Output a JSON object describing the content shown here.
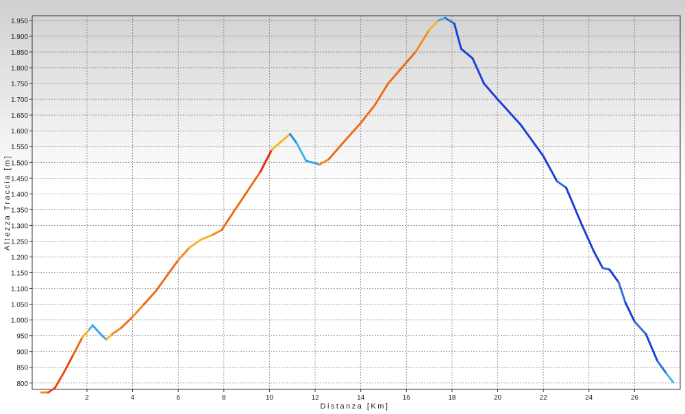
{
  "chart_data": {
    "type": "line",
    "xlabel": "Distanza [Km]",
    "ylabel": "Altezza Traccia [m]",
    "xlim": [
      -0.4,
      28
    ],
    "ylim": [
      780,
      1965
    ],
    "x_ticks": [
      2,
      4,
      6,
      8,
      10,
      12,
      14,
      16,
      18,
      20,
      22,
      24,
      26
    ],
    "y_ticks": [
      800,
      850,
      900,
      950,
      1000,
      1050,
      1100,
      1150,
      1200,
      1250,
      1300,
      1350,
      1400,
      1450,
      1500,
      1550,
      1600,
      1650,
      1700,
      1750,
      1800,
      1850,
      1900,
      1950
    ],
    "y_tick_labels": [
      "800",
      "850",
      "900",
      "950",
      "1.000",
      "1.050",
      "1.100",
      "1.150",
      "1.200",
      "1.250",
      "1.300",
      "1.350",
      "1.400",
      "1.450",
      "1.500",
      "1.550",
      "1.600",
      "1.650",
      "1.700",
      "1.750",
      "1.800",
      "1.850",
      "1.900",
      "1.950"
    ],
    "grid": true,
    "background_gradient": [
      "#cfcfcf",
      "#ffffff"
    ],
    "color_scale": "slope (red = climbing, blue = descending)",
    "series": [
      {
        "points": [
          [
            0.0,
            770,
            "#3ab8ea"
          ],
          [
            0.3,
            770,
            "#f08c1e"
          ],
          [
            0.6,
            785,
            "#e84a14"
          ],
          [
            1.0,
            835,
            "#e84a14"
          ],
          [
            1.4,
            890,
            "#e84a14"
          ],
          [
            1.8,
            945,
            "#ee6a1a"
          ],
          [
            2.1,
            970,
            "#f5b625"
          ],
          [
            2.25,
            983,
            "#3ab8ea"
          ],
          [
            2.6,
            955,
            "#3aa2ea"
          ],
          [
            2.85,
            938,
            "#3aa2ea"
          ],
          [
            3.1,
            955,
            "#f5b625"
          ],
          [
            3.5,
            975,
            "#f08c1e"
          ],
          [
            4.0,
            1010,
            "#ee6a1a"
          ],
          [
            4.5,
            1050,
            "#f08c1e"
          ],
          [
            5.0,
            1090,
            "#ee6a1a"
          ],
          [
            5.5,
            1140,
            "#ee6a1a"
          ],
          [
            6.0,
            1190,
            "#ee6a1a"
          ],
          [
            6.5,
            1230,
            "#f08c1e"
          ],
          [
            7.0,
            1255,
            "#f5b625"
          ],
          [
            7.5,
            1270,
            "#f5b625"
          ],
          [
            7.9,
            1285,
            "#f08c1e"
          ],
          [
            8.4,
            1340,
            "#ee6a1a"
          ],
          [
            9.0,
            1405,
            "#ee6a1a"
          ],
          [
            9.6,
            1470,
            "#ee6a1a"
          ],
          [
            10.1,
            1540,
            "#e02a14"
          ],
          [
            10.5,
            1565,
            "#f5b625"
          ],
          [
            10.9,
            1590,
            "#f5b625"
          ],
          [
            11.2,
            1560,
            "#1f8fe6"
          ],
          [
            11.6,
            1505,
            "#3ab8ea"
          ],
          [
            12.2,
            1493,
            "#3aa2ea"
          ],
          [
            12.6,
            1510,
            "#f08c1e"
          ],
          [
            13.2,
            1560,
            "#ee6a1a"
          ],
          [
            14.0,
            1625,
            "#ee6a1a"
          ],
          [
            14.6,
            1680,
            "#ee6a1a"
          ],
          [
            15.2,
            1750,
            "#ee6a1a"
          ],
          [
            15.8,
            1800,
            "#ee6a1a"
          ],
          [
            16.4,
            1850,
            "#ee6a1a"
          ],
          [
            17.0,
            1920,
            "#f08c1e"
          ],
          [
            17.4,
            1950,
            "#f5b625"
          ],
          [
            17.7,
            1958,
            "#3ab8ea"
          ],
          [
            18.1,
            1940,
            "#2d6fe0"
          ],
          [
            18.4,
            1860,
            "#1d3fd8"
          ],
          [
            18.9,
            1830,
            "#1d3fd8"
          ],
          [
            19.4,
            1750,
            "#1d3fd8"
          ],
          [
            20.0,
            1700,
            "#1d3fd8"
          ],
          [
            21.0,
            1620,
            "#1d3fd8"
          ],
          [
            22.0,
            1520,
            "#1d3fd8"
          ],
          [
            22.6,
            1440,
            "#1d3fd8"
          ],
          [
            23.0,
            1420,
            "#2d6fe0"
          ],
          [
            23.7,
            1300,
            "#1d3fd8"
          ],
          [
            24.2,
            1220,
            "#1d3fd8"
          ],
          [
            24.6,
            1165,
            "#1d3fd8"
          ],
          [
            24.9,
            1160,
            "#2d6fe0"
          ],
          [
            25.3,
            1120,
            "#1d3fd8"
          ],
          [
            25.6,
            1055,
            "#2d6fe0"
          ],
          [
            26.0,
            995,
            "#1d3fd8"
          ],
          [
            26.5,
            955,
            "#2d6fe0"
          ],
          [
            27.0,
            870,
            "#1d3fd8"
          ],
          [
            27.4,
            830,
            "#2d6fe0"
          ],
          [
            27.7,
            802,
            "#3ab8ea"
          ]
        ]
      }
    ]
  }
}
